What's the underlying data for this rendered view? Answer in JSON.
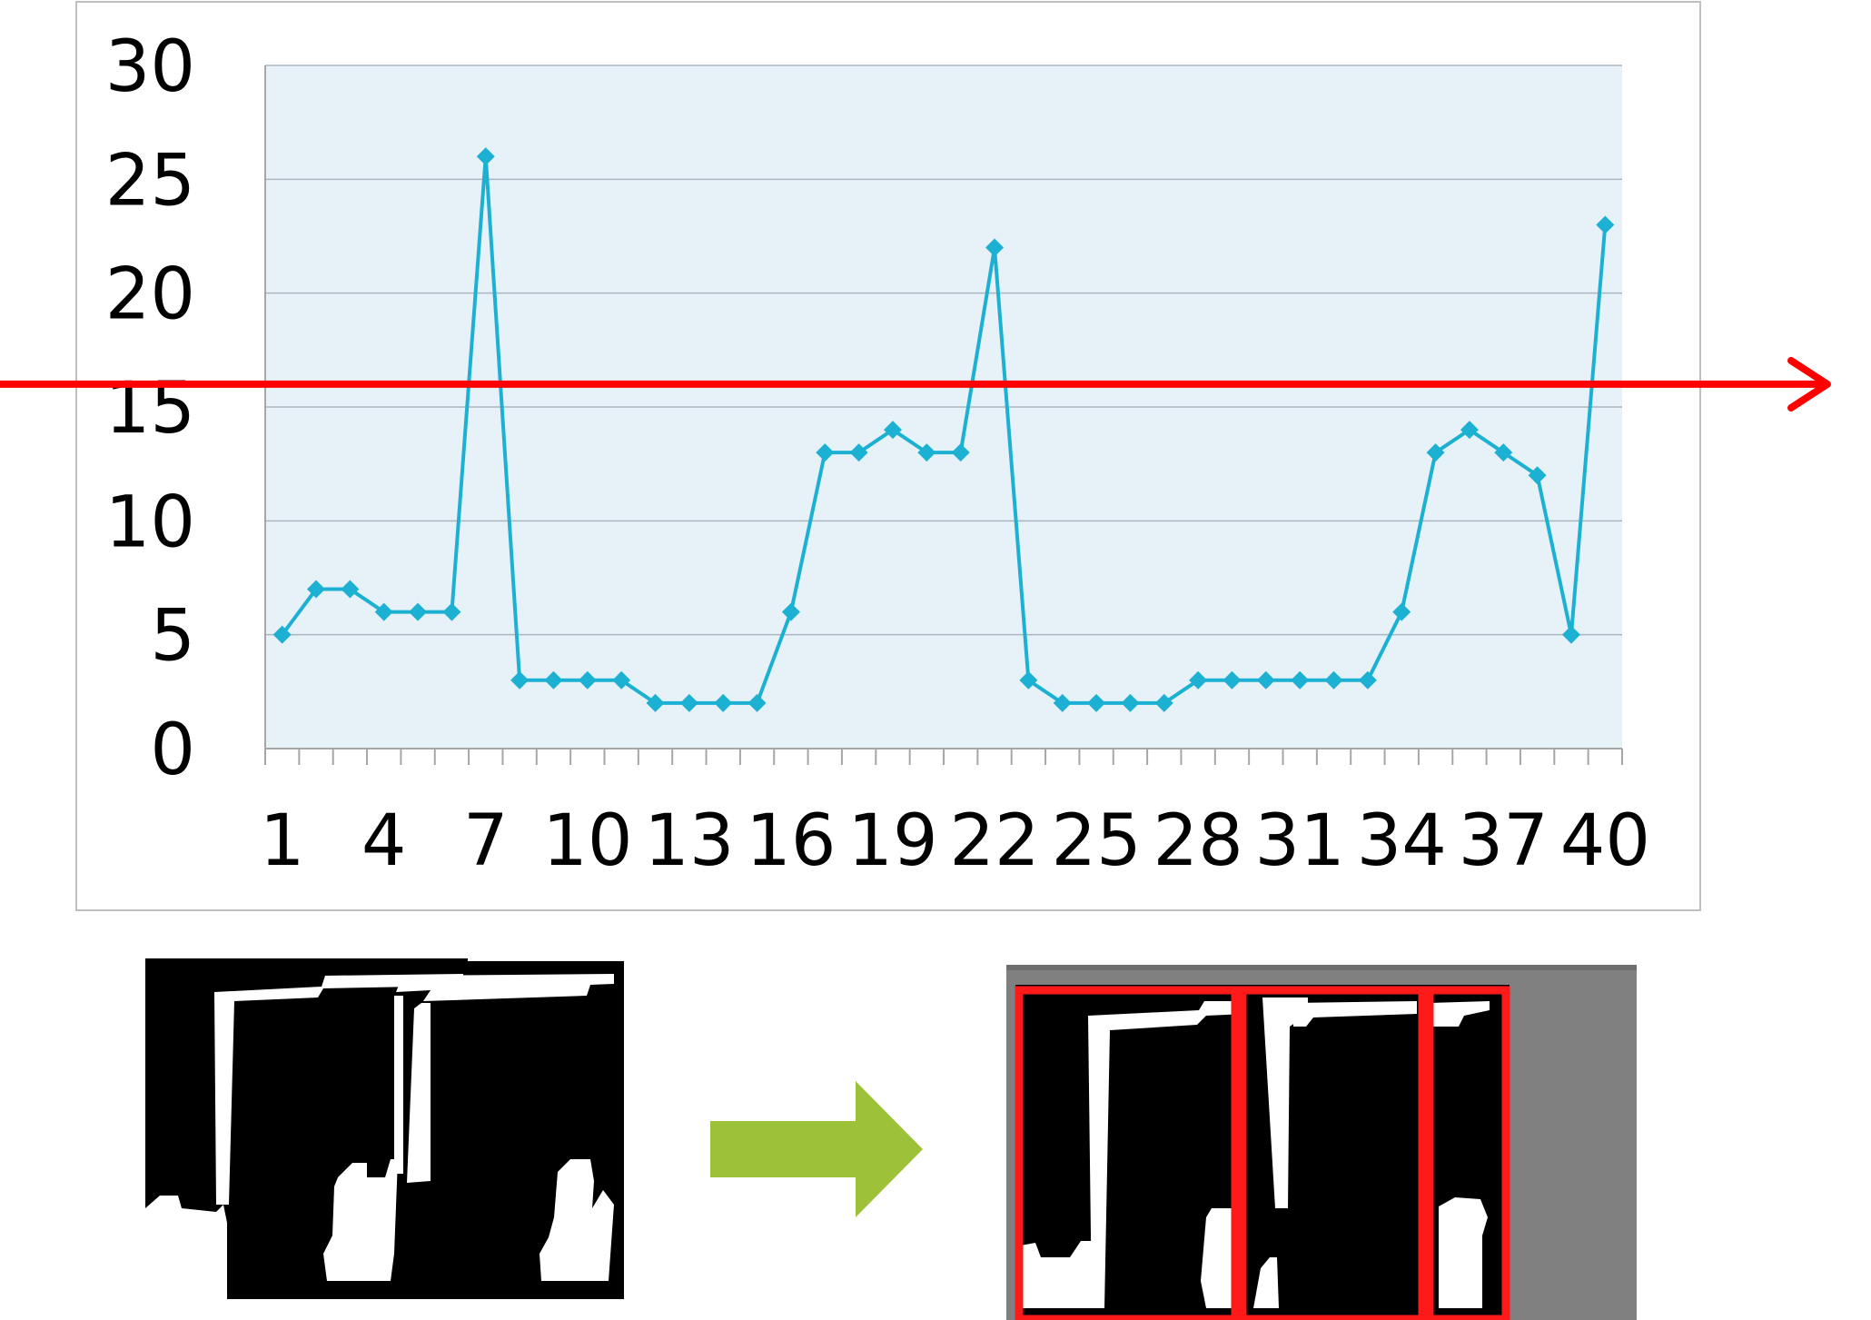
{
  "chart_data": {
    "type": "line",
    "x": [
      1,
      2,
      3,
      4,
      5,
      6,
      7,
      8,
      9,
      10,
      11,
      12,
      13,
      14,
      15,
      16,
      17,
      18,
      19,
      20,
      21,
      22,
      23,
      24,
      25,
      26,
      27,
      28,
      29,
      30,
      31,
      32,
      33,
      34,
      35,
      36,
      37,
      38,
      39,
      40
    ],
    "series": [
      {
        "values": [
          5,
          7,
          7,
          6,
          6,
          6,
          26,
          3,
          3,
          3,
          3,
          2,
          2,
          2,
          2,
          6,
          13,
          13,
          14,
          13,
          13,
          22,
          3,
          2,
          2,
          2,
          2,
          3,
          3,
          3,
          3,
          3,
          3,
          6,
          13,
          14,
          13,
          12,
          5,
          23
        ]
      }
    ],
    "x_tick_labels": [
      "1",
      "4",
      "7",
      "10",
      "13",
      "16",
      "19",
      "22",
      "25",
      "28",
      "31",
      "34",
      "37",
      "40"
    ],
    "y_tick_labels": [
      "0",
      "5",
      "10",
      "15",
      "20",
      "25",
      "30"
    ],
    "ylim": [
      0,
      30
    ],
    "threshold": 16,
    "grid": true,
    "colors": {
      "series": "#1cb1d3",
      "plot_background": "#e6f1f8",
      "threshold_arrow": "#ff0000",
      "transition_arrow": "#9dc23a",
      "segment_box": "#ff0000"
    }
  },
  "illustrations": {
    "left_image": "binarized-character-crop",
    "arrow": "green-right-arrow",
    "right_image": "segmented-character-crop-with-red-boxes"
  }
}
